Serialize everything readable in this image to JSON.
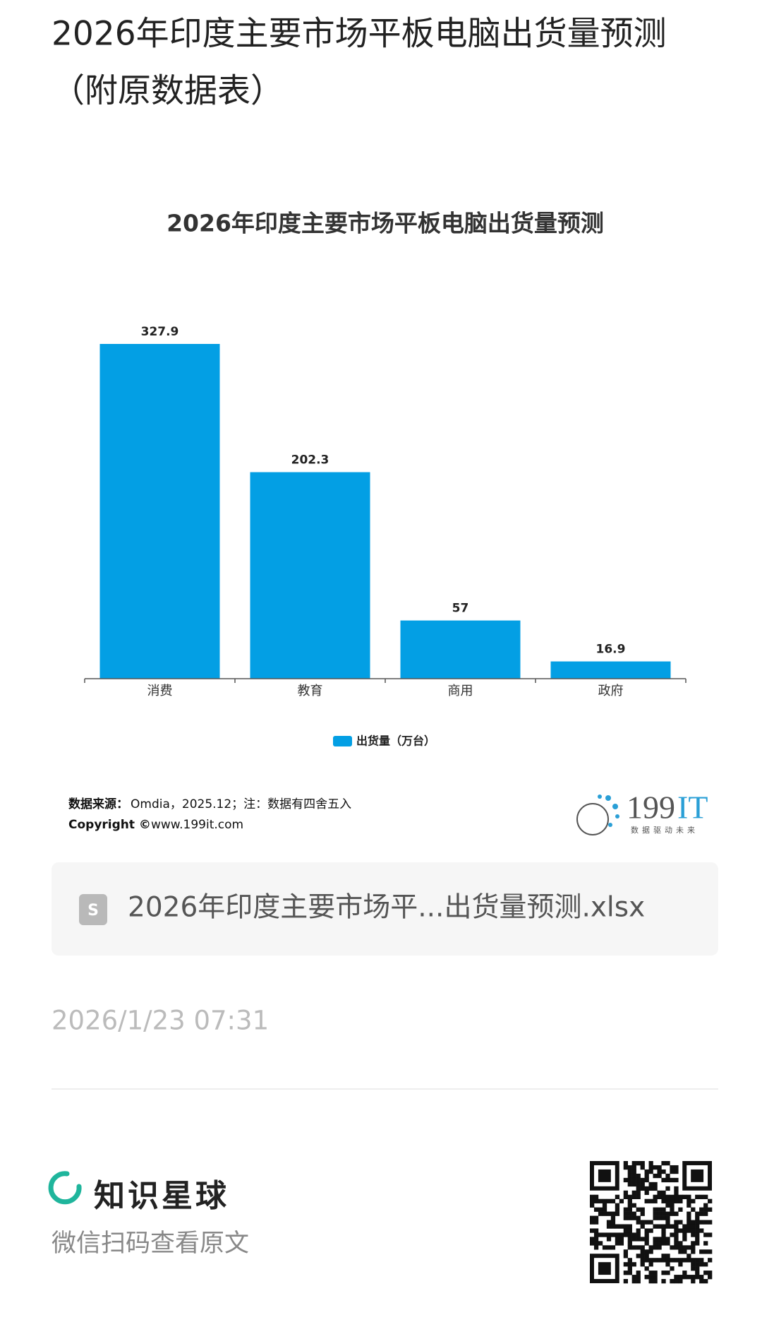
{
  "page_title": [
    "2026年印度主要市场平板电脑出货量预测",
    "（附原数据表）"
  ],
  "chart_data": {
    "type": "bar",
    "title": "2026年印度主要市场平板电脑出货量预测",
    "categories": [
      "消费",
      "教育",
      "商用",
      "政府"
    ],
    "series": [
      {
        "name": "出货量（万台）",
        "color": "#039fe4",
        "values": [
          327.9,
          202.3,
          57,
          16.9
        ]
      }
    ]
  },
  "source": {
    "label": "数据来源：",
    "text": "Omdia，2025.12；注：数据有四舍五入"
  },
  "copyright": {
    "label": "Copyright ©",
    "text": "www.199it.com"
  },
  "logo": {
    "number": "199",
    "letters": "IT",
    "slogan": "数据驱动未来"
  },
  "attachment": "2026年印度主要市场平...出货量预测.xlsx",
  "timestamp": "2026/1/23 07:31",
  "footer": {
    "brand": "知识星球",
    "prompt": "微信扫码查看原文"
  }
}
